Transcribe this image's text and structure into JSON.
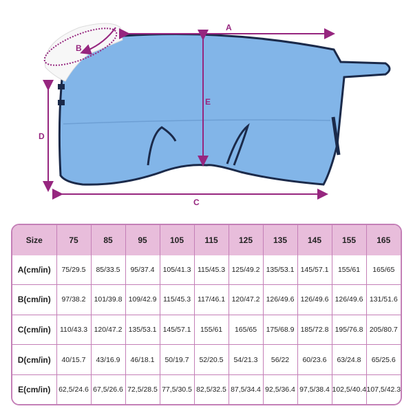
{
  "colors": {
    "blanket": "#82b5e8",
    "trim": "#1b2a4a",
    "arrow": "#96267f",
    "header_bg": "#e8bddb",
    "border": "#c47fb7"
  },
  "diagram": {
    "labels": {
      "a": "A",
      "b": "B",
      "c": "C",
      "d": "D",
      "e": "E"
    }
  },
  "table": {
    "header_label": "Size",
    "sizes": [
      "75",
      "85",
      "95",
      "105",
      "115",
      "125",
      "135",
      "145",
      "155",
      "165"
    ],
    "rows": [
      {
        "label": "A(cm/in)",
        "values": [
          "75/29.5",
          "85/33.5",
          "95/37.4",
          "105/41.3",
          "115/45.3",
          "125/49.2",
          "135/53.1",
          "145/57.1",
          "155/61",
          "165/65"
        ]
      },
      {
        "label": "B(cm/in)",
        "values": [
          "97/38.2",
          "101/39.8",
          "109/42.9",
          "115/45.3",
          "117/46.1",
          "120/47.2",
          "126/49.6",
          "126/49.6",
          "126/49.6",
          "131/51.6"
        ]
      },
      {
        "label": "C(cm/in)",
        "values": [
          "110/43.3",
          "120/47.2",
          "135/53.1",
          "145/57.1",
          "155/61",
          "165/65",
          "175/68.9",
          "185/72.8",
          "195/76.8",
          "205/80.7"
        ]
      },
      {
        "label": "D(cm/in)",
        "values": [
          "40/15.7",
          "43/16.9",
          "46/18.1",
          "50/19.7",
          "52/20.5",
          "54/21.3",
          "56/22",
          "60/23.6",
          "63/24.8",
          "65/25.6"
        ]
      },
      {
        "label": "E(cm/in)",
        "values": [
          "62,5/24.6",
          "67,5/26.6",
          "72,5/28.5",
          "77,5/30.5",
          "82,5/32.5",
          "87,5/34.4",
          "92,5/36.4",
          "97,5/38.4",
          "102,5/40.4",
          "107,5/42.3"
        ]
      }
    ]
  }
}
